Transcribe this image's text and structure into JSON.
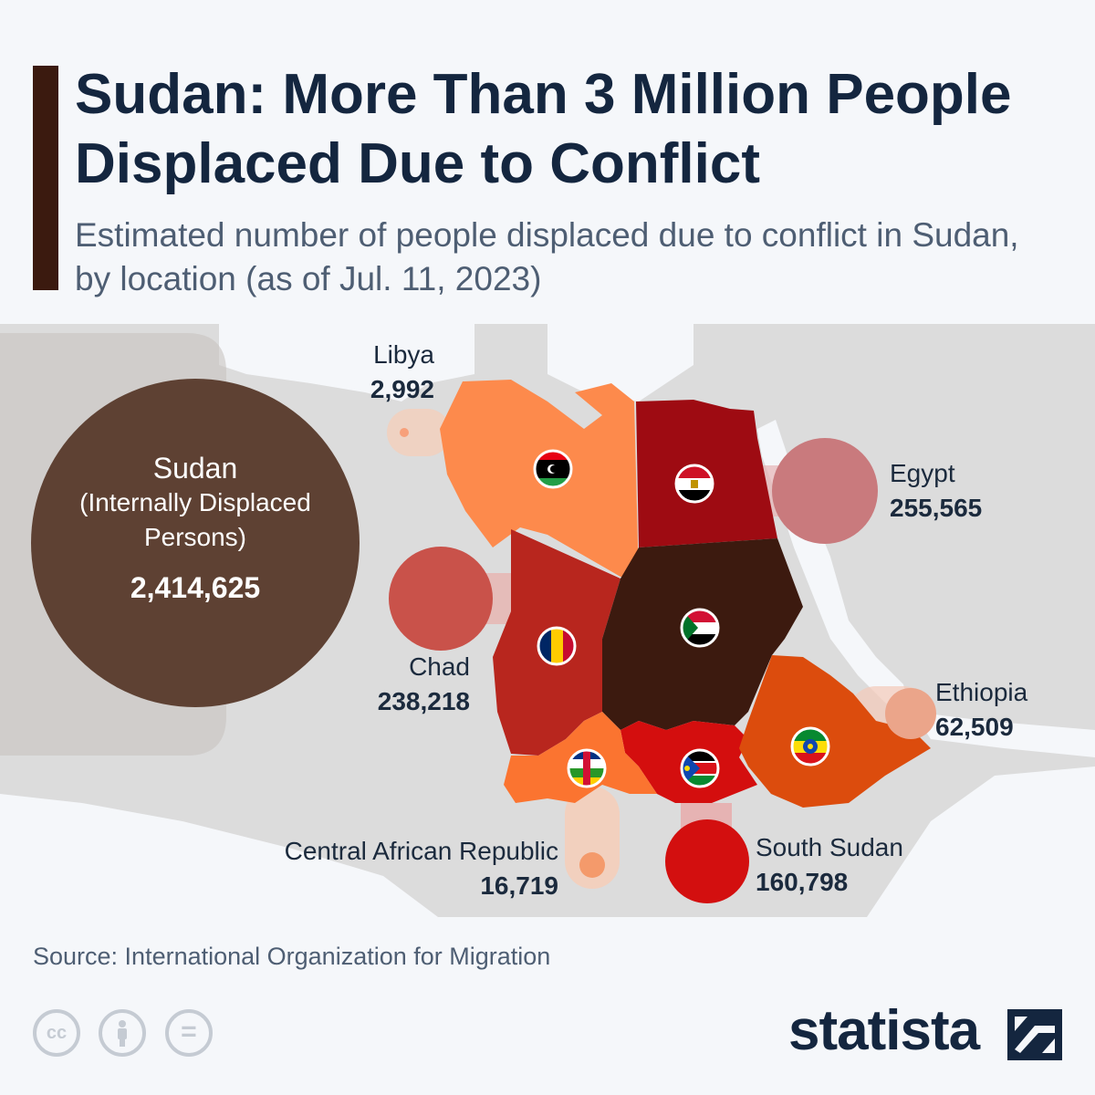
{
  "header": {
    "title": "Sudan: More Than 3 Million People Displaced Due to Conflict",
    "subtitle": "Estimated number of people displaced due to conflict in Sudan, by location (as of Jul. 11, 2023)"
  },
  "colors": {
    "title": "#14263f",
    "accent_bar": "#3b1a0f",
    "background": "#f5f7fa",
    "land": "#dcdcdc",
    "sea": "#f5f7fa",
    "sudan_bubble": "#5e4133"
  },
  "locations": [
    {
      "id": "sudan",
      "name": "Sudan",
      "subname": "(Internally Displaced Persons)",
      "value_label": "2,414,625",
      "value": 2414625,
      "color": "#3c1a0f",
      "flag_icon": "sudan-flag-icon"
    },
    {
      "id": "egypt",
      "name": "Egypt",
      "value_label": "255,565",
      "value": 255565,
      "color": "#9e0b12",
      "bubble_color": "#c97a7d",
      "flag_icon": "egypt-flag-icon"
    },
    {
      "id": "chad",
      "name": "Chad",
      "value_label": "238,218",
      "value": 238218,
      "color": "#b8261e",
      "bubble_color": "#c9524a",
      "flag_icon": "chad-flag-icon"
    },
    {
      "id": "south_sudan",
      "name": "South Sudan",
      "value_label": "160,798",
      "value": 160798,
      "color": "#d40e0e",
      "bubble_color": "#d30f0f",
      "flag_icon": "south-sudan-flag-icon"
    },
    {
      "id": "ethiopia",
      "name": "Ethiopia",
      "value_label": "62,509",
      "value": 62509,
      "color": "#dc4c0d",
      "bubble_color": "#eba58a",
      "flag_icon": "ethiopia-flag-icon"
    },
    {
      "id": "car",
      "name": "Central African Republic",
      "value_label": "16,719",
      "value": 16719,
      "color": "#fb7430",
      "bubble_color": "#f49a6b",
      "flag_icon": "car-flag-icon"
    },
    {
      "id": "libya",
      "name": "Libya",
      "value_label": "2,992",
      "value": 2992,
      "color": "#fd8a4c",
      "bubble_color": "#f7a07a",
      "flag_icon": "libya-flag-icon"
    }
  ],
  "footer": {
    "source": "Source: International Organization for Migration",
    "brand": "statista",
    "license_icons": [
      "cc-icon",
      "by-icon",
      "nd-icon"
    ],
    "cc_symbol": "cc",
    "nd_symbol": "="
  }
}
